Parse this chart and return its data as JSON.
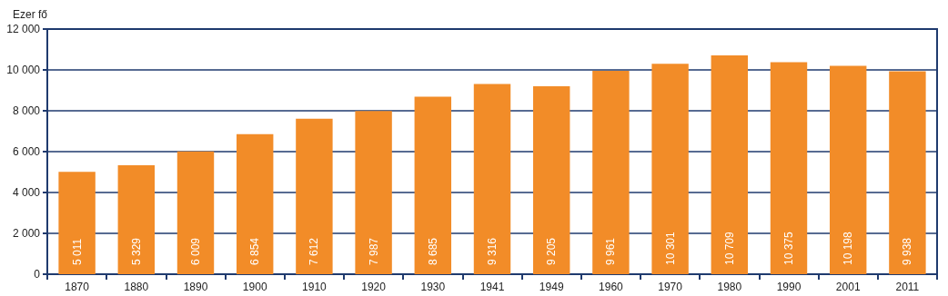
{
  "chart_data": {
    "type": "bar",
    "ylabel": "Ezer fő",
    "categories": [
      "1870",
      "1880",
      "1890",
      "1900",
      "1910",
      "1920",
      "1930",
      "1941",
      "1949",
      "1960",
      "1970",
      "1980",
      "1990",
      "2001",
      "2011"
    ],
    "values": [
      5011,
      5329,
      6009,
      6854,
      7612,
      7987,
      8685,
      9316,
      9205,
      9961,
      10301,
      10709,
      10375,
      10198,
      9938
    ],
    "value_labels": [
      "5 011",
      "5 329",
      "6 009",
      "6 854",
      "7 612",
      "7 987",
      "8 685",
      "9 316",
      "9 205",
      "9 961",
      "10 301",
      "10 709",
      "10 375",
      "10 198",
      "9 938"
    ],
    "color": "#f28c28",
    "ylim": [
      0,
      12000
    ],
    "yticks": [
      0,
      {
        "value": 2000,
        "label": "2 000"
      },
      {
        "value": 4000,
        "label": "4 000"
      },
      {
        "value": 6000,
        "label": "6 000"
      },
      {
        "value": 8000,
        "label": "8 000"
      },
      {
        "value": 10000,
        "label": "10 000"
      },
      {
        "value": 12000,
        "label": "12 000"
      }
    ],
    "grid": "y"
  }
}
